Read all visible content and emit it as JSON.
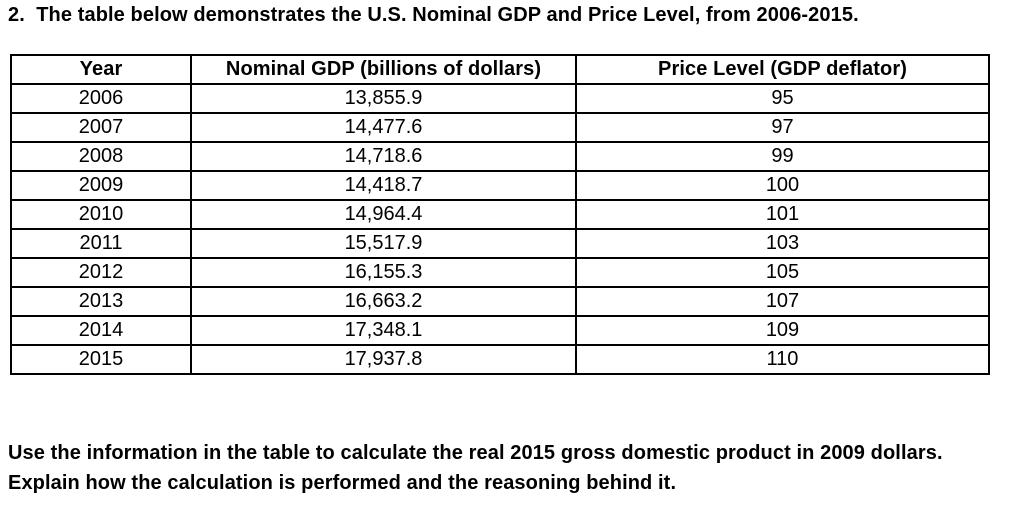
{
  "page": {
    "title": "2.  The table below demonstrates the U.S. Nominal GDP and Price Level, from 2006-2015.",
    "question": "Use the information in the table to calculate the real 2015 gross domestic product in 2009 dollars. Explain how the calculation is performed and the reasoning behind it."
  },
  "table": {
    "columns": [
      "Year",
      "Nominal GDP (billions of dollars)",
      "Price Level (GDP deflator)"
    ],
    "rows": [
      [
        "2006",
        "13,855.9",
        "95"
      ],
      [
        "2007",
        "14,477.6",
        "97"
      ],
      [
        "2008",
        "14,718.6",
        "99"
      ],
      [
        "2009",
        "14,418.7",
        "100"
      ],
      [
        "2010",
        "14,964.4",
        "101"
      ],
      [
        "2011",
        "15,517.9",
        "103"
      ],
      [
        "2012",
        "16,155.3",
        "105"
      ],
      [
        "2013",
        "16,663.2",
        "107"
      ],
      [
        "2014",
        "17,348.1",
        "109"
      ],
      [
        "2015",
        "17,937.8",
        "110"
      ]
    ]
  }
}
